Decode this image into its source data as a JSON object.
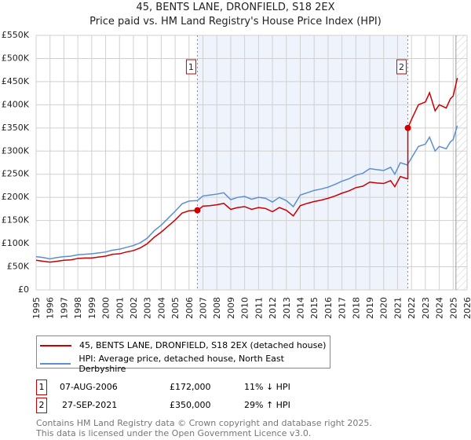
{
  "chart_data": {
    "type": "line",
    "title": "45, BENTS LANE, DRONFIELD, S18 2EX",
    "subtitle": "Price paid vs. HM Land Registry's House Price Index (HPI)",
    "xlim": [
      1995,
      2026
    ],
    "ylim": [
      0,
      550000
    ],
    "x_ticks": [
      "1995",
      "1996",
      "1997",
      "1998",
      "1999",
      "2000",
      "2001",
      "2002",
      "2003",
      "2004",
      "2005",
      "2006",
      "2007",
      "2008",
      "2009",
      "2010",
      "2011",
      "2012",
      "2013",
      "2014",
      "2015",
      "2016",
      "2017",
      "2018",
      "2019",
      "2020",
      "2021",
      "2022",
      "2023",
      "2024",
      "2025",
      "2026"
    ],
    "y_ticks": [
      {
        "v": 0,
        "label": "£0"
      },
      {
        "v": 50000,
        "label": "£50K"
      },
      {
        "v": 100000,
        "label": "£100K"
      },
      {
        "v": 150000,
        "label": "£150K"
      },
      {
        "v": 200000,
        "label": "£200K"
      },
      {
        "v": 250000,
        "label": "£250K"
      },
      {
        "v": 300000,
        "label": "£300K"
      },
      {
        "v": 350000,
        "label": "£350K"
      },
      {
        "v": 400000,
        "label": "£400K"
      },
      {
        "v": 450000,
        "label": "£450K"
      },
      {
        "v": 500000,
        "label": "£500K"
      },
      {
        "v": 550000,
        "label": "£550K"
      }
    ],
    "grid": true,
    "shaded_range": [
      2006.6,
      2021.74
    ],
    "forecast_hatch_from": 2025.2,
    "series": [
      {
        "name": "45, BENTS LANE, DRONFIELD, S18 2EX (detached house)",
        "color": "#cc0000",
        "points": [
          [
            1995,
            64
          ],
          [
            1995.5,
            62
          ],
          [
            1996,
            60
          ],
          [
            1996.5,
            62
          ],
          [
            1997,
            64
          ],
          [
            1997.5,
            65
          ],
          [
            1998,
            68
          ],
          [
            1998.5,
            69
          ],
          [
            1999,
            69
          ],
          [
            1999.5,
            71
          ],
          [
            2000,
            73
          ],
          [
            2000.5,
            77
          ],
          [
            2001,
            78
          ],
          [
            2001.5,
            82
          ],
          [
            2002,
            85
          ],
          [
            2002.5,
            91
          ],
          [
            2003,
            100
          ],
          [
            2003.5,
            114
          ],
          [
            2004,
            125
          ],
          [
            2004.5,
            138
          ],
          [
            2005,
            151
          ],
          [
            2005.5,
            166
          ],
          [
            2006,
            171
          ],
          [
            2006.6,
            172
          ],
          [
            2007,
            181
          ],
          [
            2007.5,
            182
          ],
          [
            2008,
            184
          ],
          [
            2008.5,
            187
          ],
          [
            2009,
            174
          ],
          [
            2009.5,
            178
          ],
          [
            2010,
            180
          ],
          [
            2010.5,
            174
          ],
          [
            2011,
            178
          ],
          [
            2011.5,
            176
          ],
          [
            2012,
            169
          ],
          [
            2012.5,
            178
          ],
          [
            2013,
            172
          ],
          [
            2013.5,
            160
          ],
          [
            2014,
            182
          ],
          [
            2014.5,
            187
          ],
          [
            2015,
            191
          ],
          [
            2015.5,
            194
          ],
          [
            2016,
            198
          ],
          [
            2016.5,
            203
          ],
          [
            2017,
            209
          ],
          [
            2017.5,
            214
          ],
          [
            2018,
            221
          ],
          [
            2018.5,
            224
          ],
          [
            2019,
            233
          ],
          [
            2019.5,
            231
          ],
          [
            2020,
            230
          ],
          [
            2020.5,
            236
          ],
          [
            2020.8,
            223
          ],
          [
            2021.2,
            245
          ],
          [
            2021.7,
            240
          ],
          [
            2021.74,
            240
          ],
          [
            2021.74,
            350
          ],
          [
            2022,
            368
          ],
          [
            2022.5,
            400
          ],
          [
            2023,
            406
          ],
          [
            2023.3,
            426
          ],
          [
            2023.7,
            387
          ],
          [
            2024,
            400
          ],
          [
            2024.5,
            393
          ],
          [
            2024.8,
            413
          ],
          [
            2025,
            419
          ],
          [
            2025.3,
            458
          ]
        ]
      },
      {
        "name": "HPI: Average price, detached house, North East Derbyshire",
        "color": "#5b8fd4",
        "points": [
          [
            1995,
            72
          ],
          [
            1995.5,
            70
          ],
          [
            1996,
            67
          ],
          [
            1996.5,
            70
          ],
          [
            1997,
            72
          ],
          [
            1997.5,
            73
          ],
          [
            1998,
            76
          ],
          [
            1998.5,
            77
          ],
          [
            1999,
            78
          ],
          [
            1999.5,
            80
          ],
          [
            2000,
            82
          ],
          [
            2000.5,
            86
          ],
          [
            2001,
            88
          ],
          [
            2001.5,
            92
          ],
          [
            2002,
            96
          ],
          [
            2002.5,
            102
          ],
          [
            2003,
            112
          ],
          [
            2003.5,
            128
          ],
          [
            2004,
            140
          ],
          [
            2004.5,
            155
          ],
          [
            2005,
            170
          ],
          [
            2005.5,
            186
          ],
          [
            2006,
            192
          ],
          [
            2006.6,
            193
          ],
          [
            2007,
            203
          ],
          [
            2007.5,
            205
          ],
          [
            2008,
            207
          ],
          [
            2008.5,
            210
          ],
          [
            2009,
            195
          ],
          [
            2009.5,
            200
          ],
          [
            2010,
            202
          ],
          [
            2010.5,
            196
          ],
          [
            2011,
            200
          ],
          [
            2011.5,
            198
          ],
          [
            2012,
            190
          ],
          [
            2012.5,
            200
          ],
          [
            2013,
            193
          ],
          [
            2013.5,
            180
          ],
          [
            2014,
            205
          ],
          [
            2014.5,
            210
          ],
          [
            2015,
            215
          ],
          [
            2015.5,
            218
          ],
          [
            2016,
            222
          ],
          [
            2016.5,
            228
          ],
          [
            2017,
            235
          ],
          [
            2017.5,
            240
          ],
          [
            2018,
            248
          ],
          [
            2018.5,
            252
          ],
          [
            2019,
            262
          ],
          [
            2019.5,
            260
          ],
          [
            2020,
            258
          ],
          [
            2020.5,
            265
          ],
          [
            2020.8,
            250
          ],
          [
            2021.2,
            275
          ],
          [
            2021.7,
            270
          ],
          [
            2022,
            285
          ],
          [
            2022.5,
            310
          ],
          [
            2023,
            315
          ],
          [
            2023.3,
            330
          ],
          [
            2023.7,
            300
          ],
          [
            2024,
            310
          ],
          [
            2024.5,
            305
          ],
          [
            2024.8,
            320
          ],
          [
            2025,
            325
          ],
          [
            2025.3,
            355
          ]
        ]
      }
    ],
    "y_units_in_points": "thousands GBP",
    "sales": [
      {
        "label": "1",
        "x": 2006.6,
        "y": 172000
      },
      {
        "label": "2",
        "x": 2021.74,
        "y": 350000
      }
    ]
  },
  "legend": {
    "red": "45, BENTS LANE, DRONFIELD, S18 2EX (detached house)",
    "blue": "HPI: Average price, detached house, North East Derbyshire"
  },
  "transactions": [
    {
      "num": "1",
      "date": "07-AUG-2006",
      "price": "£172,000",
      "hpi": "11% ↓ HPI"
    },
    {
      "num": "2",
      "date": "27-SEP-2021",
      "price": "£350,000",
      "hpi": "29% ↑ HPI"
    }
  ],
  "footer": {
    "line1": "Contains HM Land Registry data © Crown copyright and database right 2025.",
    "line2": "This data is licensed under the Open Government Licence v3.0."
  }
}
